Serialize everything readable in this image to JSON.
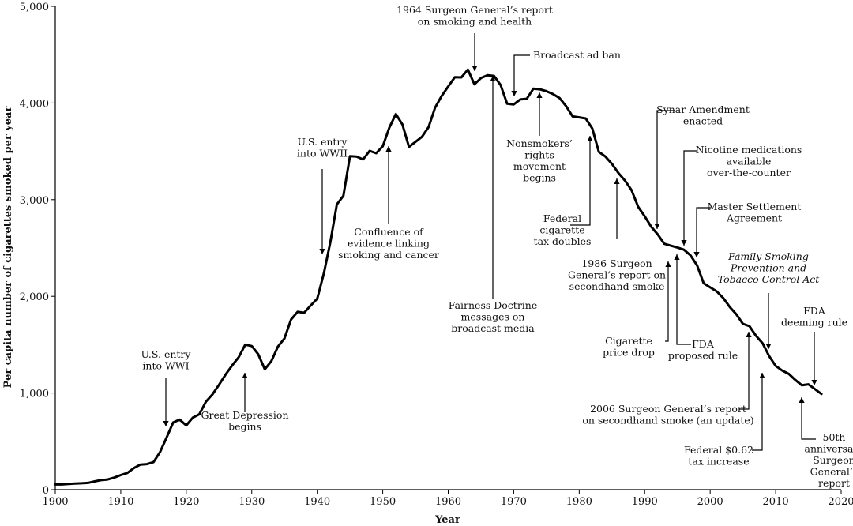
{
  "chart_data": {
    "type": "line",
    "title": "",
    "xlabel": "Year",
    "ylabel": "Per capita number of cigarettes smoked per year",
    "xlim": [
      1900,
      2020
    ],
    "ylim": [
      0,
      5000
    ],
    "x_ticks": [
      1900,
      1910,
      1920,
      1930,
      1940,
      1950,
      1960,
      1970,
      1980,
      1990,
      2000,
      2010,
      2020
    ],
    "y_ticks": [
      {
        "value": 0,
        "label": "0"
      },
      {
        "value": 1000,
        "label": "1,000"
      },
      {
        "value": 2000,
        "label": "2,000"
      },
      {
        "value": 3000,
        "label": "3,000"
      },
      {
        "value": 4000,
        "label": "4,000"
      },
      {
        "value": 5000,
        "label": "5,000"
      }
    ],
    "grid": false,
    "legend": "none",
    "line_color": "#000000",
    "series": [
      {
        "x": [
          1900,
          1901,
          1902,
          1903,
          1904,
          1905,
          1906,
          1907,
          1908,
          1909,
          1910,
          1911,
          1912,
          1913,
          1914,
          1915,
          1916,
          1917,
          1918,
          1919,
          1920,
          1921,
          1922,
          1923,
          1924,
          1925,
          1926,
          1927,
          1928,
          1929,
          1930,
          1931,
          1932,
          1933,
          1934,
          1935,
          1936,
          1937,
          1938,
          1939,
          1940,
          1941,
          1942,
          1943,
          1944,
          1945,
          1946,
          1947,
          1948,
          1949,
          1950,
          1951,
          1952,
          1953,
          1954,
          1955,
          1956,
          1957,
          1958,
          1959,
          1960,
          1961,
          1962,
          1963,
          1964,
          1965,
          1966,
          1967,
          1968,
          1969,
          1970,
          1971,
          1972,
          1973,
          1974,
          1975,
          1976,
          1977,
          1978,
          1979,
          1980,
          1981,
          1982,
          1983,
          1984,
          1985,
          1986,
          1987,
          1988,
          1989,
          1990,
          1991,
          1992,
          1993,
          1994,
          1995,
          1996,
          1997,
          1998,
          1999,
          2000,
          2001,
          2002,
          2003,
          2004,
          2005,
          2006,
          2007,
          2008,
          2009,
          2010,
          2011,
          2012,
          2013,
          2014,
          2015,
          2016,
          2017
        ],
        "values": [
          54,
          54,
          60,
          64,
          66,
          70,
          86,
          99,
          105,
          125,
          151,
          173,
          223,
          260,
          265,
          285,
          390,
          540,
          695,
          725,
          665,
          745,
          780,
          910,
          985,
          1085,
          1190,
          1285,
          1370,
          1500,
          1485,
          1400,
          1245,
          1330,
          1480,
          1565,
          1760,
          1840,
          1830,
          1905,
          1976,
          2236,
          2562,
          2951,
          3040,
          3449,
          3446,
          3416,
          3505,
          3480,
          3552,
          3744,
          3886,
          3778,
          3546,
          3597,
          3650,
          3750,
          3953,
          4073,
          4171,
          4266,
          4265,
          4345,
          4194,
          4258,
          4287,
          4280,
          4186,
          3993,
          3985,
          4037,
          4043,
          4148,
          4141,
          4122,
          4092,
          4051,
          3967,
          3861,
          3851,
          3840,
          3736,
          3494,
          3446,
          3370,
          3274,
          3197,
          3096,
          2926,
          2828,
          2720,
          2640,
          2543,
          2524,
          2505,
          2482,
          2423,
          2320,
          2136,
          2092,
          2051,
          1982,
          1890,
          1814,
          1716,
          1691,
          1592,
          1515,
          1382,
          1280,
          1232,
          1198,
          1135,
          1080,
          1090,
          1040,
          990
        ]
      }
    ],
    "annotations": [
      {
        "label": "U.S. entry into WWI",
        "lines": [
          "U.S. entry",
          "into WWI"
        ],
        "year": 1917
      },
      {
        "label": "Great Depression begins",
        "lines": [
          "Great Depression",
          "begins"
        ],
        "year": 1929
      },
      {
        "label": "U.S. entry into WWII",
        "lines": [
          "U.S. entry",
          "into WWII"
        ],
        "year": 1941
      },
      {
        "label": "Confluence of evidence linking smoking and cancer",
        "lines": [
          "Confluence of",
          "evidence linking",
          "smoking and cancer"
        ],
        "year": 1951
      },
      {
        "label": "1964 Surgeon General's report on smoking and health",
        "lines": [
          "1964 Surgeon General’s report",
          "on smoking and health"
        ],
        "year": 1964
      },
      {
        "label": "Fairness Doctrine messages on broadcast media",
        "lines": [
          "Fairness Doctrine",
          "messages on",
          "broadcast media"
        ],
        "year": 1967
      },
      {
        "label": "Broadcast ad ban",
        "lines": [
          "Broadcast ad ban"
        ],
        "year": 1970
      },
      {
        "label": "Nonsmokers' rights movement begins",
        "lines": [
          "Nonsmokers’",
          "rights",
          "movement",
          "begins"
        ],
        "year": 1973
      },
      {
        "label": "Federal cigarette tax doubles",
        "lines": [
          "Federal",
          "cigarette",
          "tax doubles"
        ],
        "year": 1983
      },
      {
        "label": "1986 Surgeon General's report on secondhand smoke",
        "lines": [
          "1986 Surgeon",
          "General’s report on",
          "secondhand smoke"
        ],
        "year": 1986
      },
      {
        "label": "Synar Amendment enacted",
        "lines": [
          "Synar Amendment",
          "enacted"
        ],
        "year": 1992
      },
      {
        "label": "Cigarette price drop",
        "lines": [
          "Cigarette",
          "price drop"
        ],
        "year": 1993
      },
      {
        "label": "FDA proposed rule",
        "lines": [
          "FDA",
          "proposed rule"
        ],
        "year": 1995
      },
      {
        "label": "Nicotine medications available over-the-counter",
        "lines": [
          "Nicotine medications",
          "available",
          "over-the-counter"
        ],
        "year": 1996
      },
      {
        "label": "Master Settlement Agreement",
        "lines": [
          "Master Settlement",
          "Agreement"
        ],
        "year": 1998
      },
      {
        "label": "Family Smoking Prevention and Tobacco Control Act",
        "lines": [
          "Family Smoking",
          "Prevention and",
          "Tobacco Control Act"
        ],
        "year": 2009,
        "italic": true
      },
      {
        "label": "2006 Surgeon General's report on secondhand smoke (an update)",
        "lines": [
          "2006 Surgeon General’s report",
          "on secondhand smoke (an update)"
        ],
        "year": 2006
      },
      {
        "label": "Federal $0.62 tax increase",
        "lines": [
          "Federal $0.62",
          "tax increase"
        ],
        "year": 2008
      },
      {
        "label": "FDA deeming rule",
        "lines": [
          "FDA",
          "deeming rule"
        ],
        "year": 2016
      },
      {
        "label": "50th anniversary Surgeon General's report",
        "lines": [
          "50th",
          "anniversary",
          "Surgeon",
          "General’s",
          "report"
        ],
        "year": 2014
      }
    ]
  }
}
